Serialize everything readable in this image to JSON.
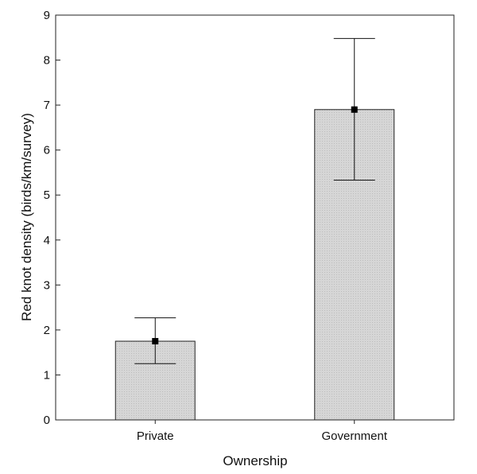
{
  "chart_data": {
    "type": "bar",
    "title": "",
    "xlabel": "Ownership",
    "ylabel": "Red knot density (birds/km/survey)",
    "categories": [
      "Private",
      "Government"
    ],
    "values": [
      1.75,
      6.9
    ],
    "error_bars": [
      {
        "lower": 1.25,
        "upper": 2.27
      },
      {
        "lower": 5.33,
        "upper": 8.48
      }
    ],
    "ylim": [
      0,
      9
    ],
    "yticks": [
      0,
      1,
      2,
      3,
      4,
      5,
      6,
      7,
      8,
      9
    ],
    "grid": false,
    "legend": "none",
    "colors": {
      "bar_fill": "#d4d4d4",
      "bar_stroke": "#222222",
      "marker": "#000000",
      "axis": "#222222"
    }
  }
}
